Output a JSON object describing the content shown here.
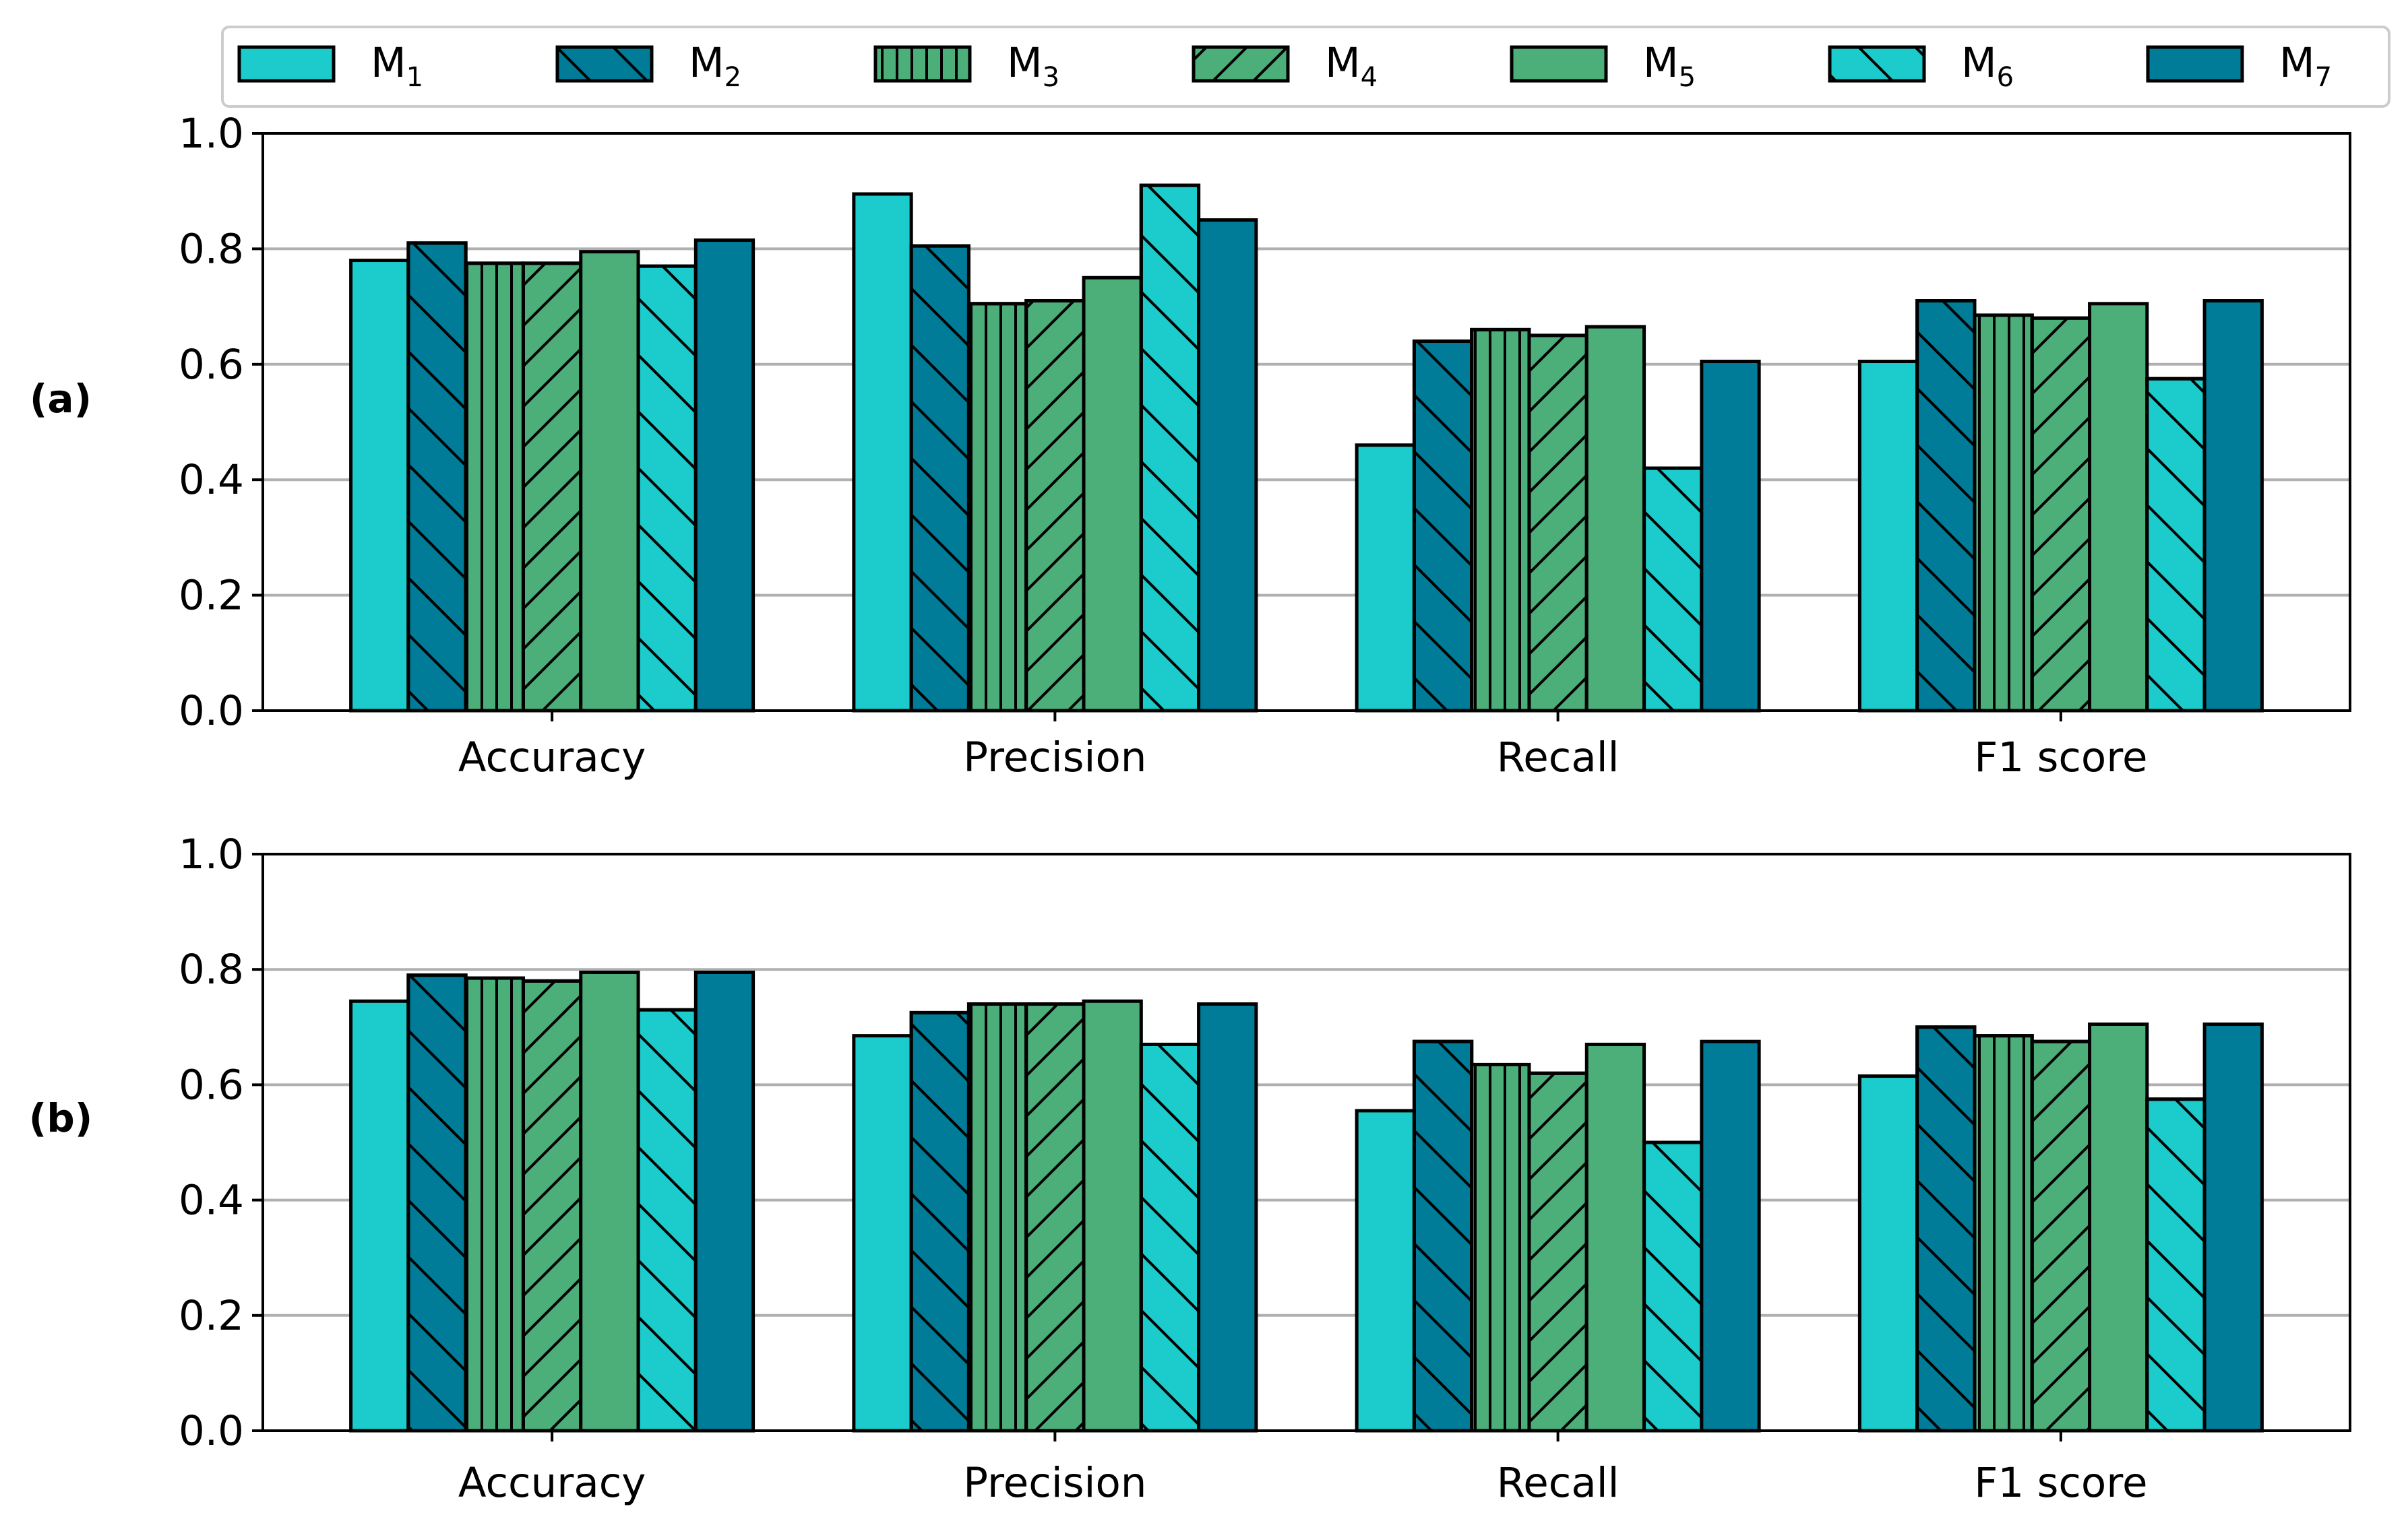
{
  "figure": {
    "legend": {
      "entries": [
        {
          "label": "M",
          "sub": "1"
        },
        {
          "label": "M",
          "sub": "2"
        },
        {
          "label": "M",
          "sub": "3"
        },
        {
          "label": "M",
          "sub": "4"
        },
        {
          "label": "M",
          "sub": "5"
        },
        {
          "label": "M",
          "sub": "6"
        },
        {
          "label": "M",
          "sub": "7"
        }
      ],
      "placement": "top"
    }
  },
  "series_styles": [
    {
      "color": "#1ccbcb",
      "hatch": "none"
    },
    {
      "color": "#007c99",
      "hatch": "backslash"
    },
    {
      "color": "#4caf7a",
      "hatch": "vertical"
    },
    {
      "color": "#4caf7a",
      "hatch": "slash"
    },
    {
      "color": "#4caf7a",
      "hatch": "none"
    },
    {
      "color": "#1ccbcb",
      "hatch": "backslash"
    },
    {
      "color": "#007c99",
      "hatch": "none"
    }
  ],
  "chart_data": [
    {
      "type": "bar",
      "panel_label": "(a)",
      "categories": [
        "Accuracy",
        "Precision",
        "Recall",
        "F1 score"
      ],
      "yticks": [
        "0.0",
        "0.2",
        "0.4",
        "0.6",
        "0.8",
        "1.0"
      ],
      "ylim": [
        0,
        1
      ],
      "grid": "horizontal",
      "series": [
        {
          "name": "M1",
          "values": [
            0.78,
            0.895,
            0.46,
            0.605
          ]
        },
        {
          "name": "M2",
          "values": [
            0.81,
            0.805,
            0.64,
            0.71
          ]
        },
        {
          "name": "M3",
          "values": [
            0.775,
            0.705,
            0.66,
            0.685
          ]
        },
        {
          "name": "M4",
          "values": [
            0.775,
            0.71,
            0.65,
            0.68
          ]
        },
        {
          "name": "M5",
          "values": [
            0.795,
            0.75,
            0.665,
            0.705
          ]
        },
        {
          "name": "M6",
          "values": [
            0.77,
            0.91,
            0.42,
            0.575
          ]
        },
        {
          "name": "M7",
          "values": [
            0.815,
            0.85,
            0.605,
            0.71
          ]
        }
      ]
    },
    {
      "type": "bar",
      "panel_label": "(b)",
      "categories": [
        "Accuracy",
        "Precision",
        "Recall",
        "F1 score"
      ],
      "yticks": [
        "0.0",
        "0.2",
        "0.4",
        "0.6",
        "0.8",
        "1.0"
      ],
      "ylim": [
        0,
        1
      ],
      "grid": "horizontal",
      "series": [
        {
          "name": "M1",
          "values": [
            0.745,
            0.685,
            0.555,
            0.615
          ]
        },
        {
          "name": "M2",
          "values": [
            0.79,
            0.725,
            0.675,
            0.7
          ]
        },
        {
          "name": "M3",
          "values": [
            0.785,
            0.74,
            0.635,
            0.685
          ]
        },
        {
          "name": "M4",
          "values": [
            0.78,
            0.74,
            0.62,
            0.675
          ]
        },
        {
          "name": "M5",
          "values": [
            0.795,
            0.745,
            0.67,
            0.705
          ]
        },
        {
          "name": "M6",
          "values": [
            0.73,
            0.67,
            0.5,
            0.575
          ]
        },
        {
          "name": "M7",
          "values": [
            0.795,
            0.74,
            0.675,
            0.705
          ]
        }
      ]
    }
  ]
}
